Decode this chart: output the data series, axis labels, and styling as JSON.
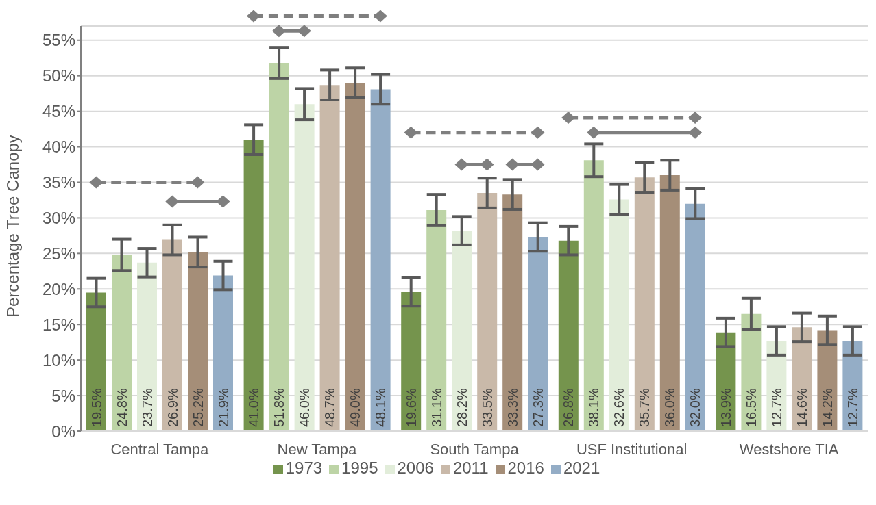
{
  "chart_data": {
    "type": "bar",
    "ylabel": "Percentage Tree Canopy",
    "categories": [
      "Central Tampa",
      "New Tampa",
      "South Tampa",
      "USF Institutional",
      "Westshore TIA"
    ],
    "series": [
      {
        "name": "1973",
        "color": "#75944d",
        "values": [
          19.5,
          41.0,
          19.6,
          26.8,
          13.9
        ],
        "errors": [
          2,
          2.1,
          2,
          2,
          2
        ],
        "value_labels": [
          "19.5%",
          "41.0%",
          "19.6%",
          "26.8%",
          "13.9%"
        ]
      },
      {
        "name": "1995",
        "color": "#bdd4a6",
        "values": [
          24.8,
          51.8,
          31.1,
          38.1,
          16.5
        ],
        "errors": [
          2.2,
          2.2,
          2.2,
          2.3,
          2.2
        ],
        "value_labels": [
          "24.8%",
          "51.8%",
          "31.1%",
          "38.1%",
          "16.5%"
        ]
      },
      {
        "name": "2006",
        "color": "#e2edda",
        "values": [
          23.7,
          46.0,
          28.2,
          32.6,
          12.7
        ],
        "errors": [
          2,
          2.2,
          2,
          2.1,
          2
        ],
        "value_labels": [
          "23.7%",
          "46.0%",
          "28.2%",
          "32.6%",
          "12.7%"
        ]
      },
      {
        "name": "2011",
        "color": "#c9b9a9",
        "values": [
          26.9,
          48.7,
          33.5,
          35.7,
          14.6
        ],
        "errors": [
          2.1,
          2.1,
          2.1,
          2.1,
          2
        ],
        "value_labels": [
          "26.9%",
          "48.7%",
          "33.5%",
          "35.7%",
          "14.6%"
        ]
      },
      {
        "name": "2016",
        "color": "#a58e78",
        "values": [
          25.2,
          49.0,
          33.3,
          36.0,
          14.2
        ],
        "errors": [
          2.1,
          2.1,
          2.1,
          2.1,
          2
        ],
        "value_labels": [
          "25.2%",
          "49.0%",
          "33.3%",
          "36.0%",
          "14.2%"
        ]
      },
      {
        "name": "2021",
        "color": "#94adc6",
        "values": [
          21.9,
          48.1,
          27.3,
          32.0,
          12.7
        ],
        "errors": [
          2,
          2.1,
          2,
          2.1,
          2
        ],
        "value_labels": [
          "21.9%",
          "48.1%",
          "27.3%",
          "32.0%",
          "12.7%"
        ]
      }
    ],
    "ylim": [
      0,
      57
    ],
    "yticks": [
      {
        "value": 0,
        "label": "0%"
      },
      {
        "value": 5,
        "label": "5%"
      },
      {
        "value": 10,
        "label": "10%"
      },
      {
        "value": 15,
        "label": "15%"
      },
      {
        "value": 20,
        "label": "20%"
      },
      {
        "value": 25,
        "label": "25%"
      },
      {
        "value": 30,
        "label": "30%"
      },
      {
        "value": 35,
        "label": "35%"
      },
      {
        "value": 40,
        "label": "40%"
      },
      {
        "value": 45,
        "label": "45%"
      },
      {
        "value": 50,
        "label": "50%"
      },
      {
        "value": 55,
        "label": "55%"
      }
    ],
    "grid": "y",
    "legend": "bottom"
  }
}
